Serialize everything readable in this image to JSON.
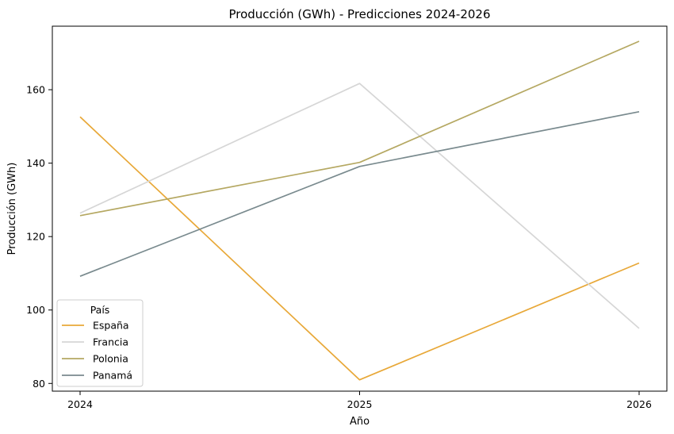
{
  "chart_data": {
    "type": "line",
    "title": "Producción (GWh) - Predicciones 2024-2026",
    "xlabel": "Año",
    "ylabel": "Producción (GWh)",
    "x": [
      2024,
      2025,
      2026
    ],
    "x_tick_labels": [
      "2024",
      "2025",
      "2026"
    ],
    "y_ticks": [
      80,
      100,
      120,
      140,
      160
    ],
    "ylim": [
      77.9,
      177.3
    ],
    "grid": false,
    "legend": {
      "title": "País",
      "placement": "lower-left"
    },
    "series": [
      {
        "name": "España",
        "color": "#e8a838",
        "values": [
          152.6,
          81.0,
          112.8
        ]
      },
      {
        "name": "Francia",
        "color": "#d6d6d6",
        "values": [
          126.4,
          161.7,
          95.0
        ]
      },
      {
        "name": "Polonia",
        "color": "#b5a862",
        "values": [
          125.7,
          140.2,
          173.2
        ]
      },
      {
        "name": "Panamá",
        "color": "#798a8e",
        "values": [
          109.2,
          139.1,
          154.0
        ]
      }
    ]
  }
}
